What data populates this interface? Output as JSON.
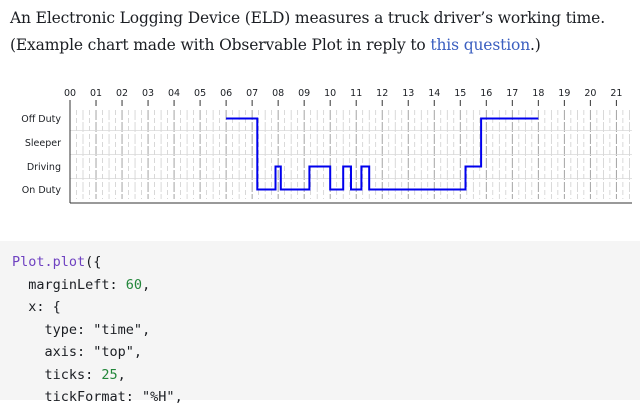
{
  "intro": {
    "line1": "An Electronic Logging Device (ELD) measures a truck driver’s working time.",
    "line2_prefix": "(Example chart made with Observable Plot in reply to ",
    "link_text": "this question",
    "line2_suffix": ".)"
  },
  "chart_data": {
    "type": "line",
    "x_axis": {
      "position": "top",
      "ticks": [
        "00",
        "01",
        "02",
        "03",
        "04",
        "05",
        "06",
        "07",
        "08",
        "09",
        "10",
        "11",
        "12",
        "13",
        "14",
        "15",
        "16",
        "17",
        "18",
        "19",
        "20",
        "21"
      ],
      "range_hours": [
        0,
        21.6
      ]
    },
    "y_categories": [
      "Off Duty",
      "Sleeper",
      "Driving",
      "On Duty"
    ],
    "grid": true,
    "line_color": "#0000ee",
    "series": [
      {
        "points": [
          {
            "hour": 6.0,
            "status": "Off Duty"
          },
          {
            "hour": 7.2,
            "status": "Off Duty"
          },
          {
            "hour": 7.2,
            "status": "On Duty"
          },
          {
            "hour": 7.9,
            "status": "On Duty"
          },
          {
            "hour": 7.9,
            "status": "Driving"
          },
          {
            "hour": 8.1,
            "status": "Driving"
          },
          {
            "hour": 8.1,
            "status": "On Duty"
          },
          {
            "hour": 9.2,
            "status": "On Duty"
          },
          {
            "hour": 9.2,
            "status": "Driving"
          },
          {
            "hour": 10.0,
            "status": "Driving"
          },
          {
            "hour": 10.0,
            "status": "On Duty"
          },
          {
            "hour": 10.5,
            "status": "On Duty"
          },
          {
            "hour": 10.5,
            "status": "Driving"
          },
          {
            "hour": 10.8,
            "status": "Driving"
          },
          {
            "hour": 10.8,
            "status": "On Duty"
          },
          {
            "hour": 11.2,
            "status": "On Duty"
          },
          {
            "hour": 11.2,
            "status": "Driving"
          },
          {
            "hour": 11.5,
            "status": "Driving"
          },
          {
            "hour": 11.5,
            "status": "On Duty"
          },
          {
            "hour": 15.2,
            "status": "On Duty"
          },
          {
            "hour": 15.2,
            "status": "Driving"
          },
          {
            "hour": 15.8,
            "status": "Driving"
          },
          {
            "hour": 15.8,
            "status": "Off Duty"
          },
          {
            "hour": 18.0,
            "status": "Off Duty"
          }
        ]
      }
    ]
  },
  "code": {
    "lines": [
      [
        {
          "t": "fn",
          "v": "Plot.plot"
        },
        {
          "t": "p",
          "v": "({"
        }
      ],
      [
        {
          "t": "p",
          "v": "  marginLeft: "
        },
        {
          "t": "num",
          "v": "60"
        },
        {
          "t": "p",
          "v": ","
        }
      ],
      [
        {
          "t": "p",
          "v": "  x: {"
        }
      ],
      [
        {
          "t": "p",
          "v": "    type: "
        },
        {
          "t": "str",
          "v": "\"time\""
        },
        {
          "t": "p",
          "v": ","
        }
      ],
      [
        {
          "t": "p",
          "v": "    axis: "
        },
        {
          "t": "str",
          "v": "\"top\""
        },
        {
          "t": "p",
          "v": ","
        }
      ],
      [
        {
          "t": "p",
          "v": "    ticks: "
        },
        {
          "t": "num",
          "v": "25"
        },
        {
          "t": "p",
          "v": ","
        }
      ],
      [
        {
          "t": "p",
          "v": "    tickFormat: "
        },
        {
          "t": "str",
          "v": "\"%H\""
        },
        {
          "t": "p",
          "v": ","
        }
      ]
    ]
  }
}
